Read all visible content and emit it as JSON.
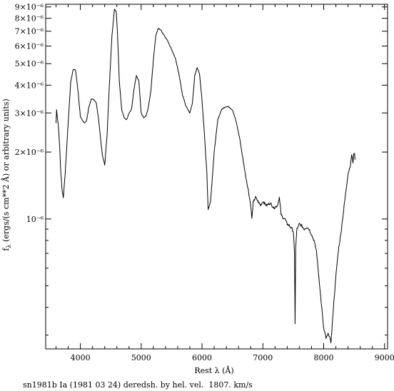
{
  "chart_data": {
    "type": "line",
    "xlabel": "Rest λ (Å)",
    "ylabel": "f_λ (ergs/(s cm**2 Å) or arbitrary units)",
    "ylabel_parts": {
      "f": "f",
      "sub": "λ",
      "rest": " (ergs/(s cm**2 Å) or arbitrary units)"
    },
    "caption": "sn1981b Ia (1981 03 24) deredsh. by hel. vel.  1807. km/s",
    "xlim": [
      3430,
      9050
    ],
    "ylim": [
      2.6e-07,
      9.25e-06
    ],
    "yscale": "log",
    "grid": false,
    "x_ticks": [
      {
        "value": 4000,
        "label": "4000"
      },
      {
        "value": 5000,
        "label": "5000"
      },
      {
        "value": 6000,
        "label": "6000"
      },
      {
        "value": 7000,
        "label": "7000"
      },
      {
        "value": 8000,
        "label": "8000"
      },
      {
        "value": 9000,
        "label": "9000"
      }
    ],
    "y_ticks": [
      {
        "value": 1e-06,
        "label": "10⁻⁶"
      },
      {
        "value": 2e-06,
        "label": "2×10⁻⁶"
      },
      {
        "value": 3e-06,
        "label": "3×10⁻⁶"
      },
      {
        "value": 4e-06,
        "label": "4×10⁻⁶"
      },
      {
        "value": 5e-06,
        "label": "5×10⁻⁶"
      },
      {
        "value": 6e-06,
        "label": "6×10⁻⁶"
      },
      {
        "value": 7e-06,
        "label": "7×10⁻⁶"
      },
      {
        "value": 8e-06,
        "label": "8×10⁻⁶"
      },
      {
        "value": 9e-06,
        "label": "9×10⁻⁶"
      }
    ],
    "y_minor_ticks": [
      3e-07,
      4e-07,
      5e-07,
      6e-07,
      7e-07,
      8e-07,
      9e-07
    ],
    "series": [
      {
        "x": [
          3600,
          3610,
          3620,
          3640,
          3660,
          3680,
          3700,
          3720,
          3750,
          3800,
          3840,
          3880,
          3920,
          3960,
          4000,
          4060,
          4100,
          4140,
          4180,
          4220,
          4260,
          4300,
          4360,
          4400,
          4440,
          4480,
          4520,
          4560,
          4590,
          4610,
          4640,
          4680,
          4720,
          4760,
          4800,
          4840,
          4880,
          4920,
          4960,
          5000,
          5040,
          5080,
          5120,
          5160,
          5200,
          5240,
          5280,
          5320,
          5380,
          5440,
          5500,
          5560,
          5620,
          5680,
          5740,
          5800,
          5840,
          5880,
          5920,
          5960,
          6000,
          6040,
          6080,
          6100,
          6140,
          6200,
          6260,
          6320,
          6380,
          6440,
          6500,
          6560,
          6620,
          6680,
          6720,
          6760,
          6780,
          6800,
          6820,
          6840,
          6860,
          6880,
          6920,
          6960,
          7000,
          7060,
          7120,
          7180,
          7240,
          7270,
          7300,
          7320,
          7360,
          7400,
          7440,
          7480,
          7500,
          7520,
          7530,
          7540,
          7560,
          7580,
          7600,
          7640,
          7680,
          7720,
          7760,
          7800,
          7840,
          7880,
          7920,
          7960,
          8000,
          8040,
          8080,
          8100,
          8120,
          8140,
          8160,
          8200,
          8240,
          8280,
          8320,
          8360,
          8400,
          8440,
          8460,
          8480,
          8500,
          8520
        ],
        "y": [
          2.7e-06,
          3.1e-06,
          2.9e-06,
          2.6e-06,
          2.1e-06,
          1.6e-06,
          1.35e-06,
          1.25e-06,
          1.6e-06,
          2.7e-06,
          4.1e-06,
          4.7e-06,
          4.7e-06,
          3.8e-06,
          2.9e-06,
          2.7e-06,
          2.75e-06,
          3.2e-06,
          3.45e-06,
          3.45e-06,
          3.35e-06,
          2.8e-06,
          1.95e-06,
          1.75e-06,
          2.4e-06,
          4.2e-06,
          6.7e-06,
          8.8e-06,
          8.6e-06,
          6.9e-06,
          4.2e-06,
          3.1e-06,
          2.85e-06,
          2.8e-06,
          3e-06,
          3.1e-06,
          3.8e-06,
          4.4e-06,
          4.2e-06,
          3e-06,
          2.85e-06,
          2.9e-06,
          3.2e-06,
          3.8e-06,
          5.2e-06,
          6.7e-06,
          7.2e-06,
          7.1e-06,
          6.7e-06,
          6.3e-06,
          5.8e-06,
          5.3e-06,
          4.5e-06,
          3.6e-06,
          3.2e-06,
          3e-06,
          3.3e-06,
          4.4e-06,
          4.8e-06,
          4.5e-06,
          3.4e-06,
          2.4e-06,
          1.6e-06,
          1.1e-06,
          1.2e-06,
          2e-06,
          2.8e-06,
          3.1e-06,
          3.2e-06,
          3.2e-06,
          3.1e-06,
          2.75e-06,
          2.3e-06,
          1.8e-06,
          1.55e-06,
          1.35e-06,
          1.25e-06,
          1.15e-06,
          1e-06,
          1.18e-06,
          1.22e-06,
          1.25e-06,
          1.2e-06,
          1.15e-06,
          1.2e-06,
          1.15e-06,
          1.18e-06,
          1.12e-06,
          1.15e-06,
          1.25e-06,
          1.05e-06,
          1.02e-06,
          1e-06,
          9.5e-07,
          9.3e-07,
          9e-07,
          8.8e-07,
          7e-07,
          3.4e-07,
          7.5e-07,
          9e-07,
          9.2e-07,
          9.5e-07,
          9.3e-07,
          9e-07,
          9.2e-07,
          9e-07,
          8.5e-07,
          8e-07,
          7.2e-07,
          5.5e-07,
          4.2e-07,
          3.2e-07,
          2.9e-07,
          3.05e-07,
          2.9e-07,
          2.8e-07,
          3.3e-07,
          4e-07,
          5.5e-07,
          7.2e-07,
          8.5e-07,
          1.05e-06,
          1.3e-06,
          1.6e-06,
          1.75e-06,
          1.95e-06,
          1.8e-06,
          2e-06,
          1.85e-06
        ]
      }
    ]
  }
}
